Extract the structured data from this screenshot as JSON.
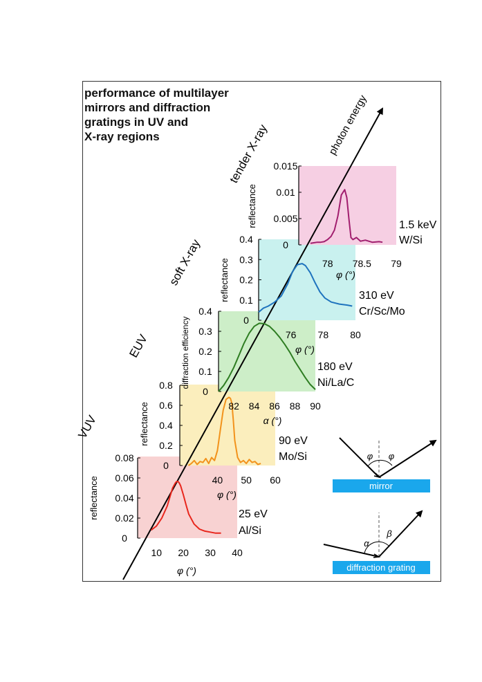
{
  "title_lines": [
    "performance of multilayer",
    "mirrors and diffraction",
    "gratings in UV and",
    "X-ray regions"
  ],
  "axis_label": "photon energy",
  "regions": [
    "VUV",
    "EUV",
    "soft X-ray",
    "tender X-ray"
  ],
  "colors": {
    "vuv_bg": "#f8d2d2",
    "vuv_line": "#e8261c",
    "euv_bg": "#fbeebd",
    "euv_line": "#f2921b",
    "nila_bg": "#cdeec8",
    "nila_line": "#2e7d22",
    "soft_bg": "#c9f1ef",
    "soft_line": "#1e73be",
    "tender_bg": "#f6cfe3",
    "tender_line": "#a11e6e",
    "diagram_bar": "#1aa7ec"
  },
  "chart_data": [
    {
      "type": "line",
      "energy": "25 eV",
      "material": "Al/Si",
      "xlabel": "φ (°)",
      "ylabel": "reflectance",
      "xticks": [
        "10",
        "20",
        "30",
        "40"
      ],
      "yticks": [
        "0",
        "0.02",
        "0.04",
        "0.06",
        "0.08"
      ],
      "xlim": [
        3,
        40
      ],
      "ylim": [
        0,
        0.08
      ],
      "x": [
        8,
        10,
        12,
        14,
        15,
        16,
        17,
        17.5,
        18,
        18.5,
        19,
        20,
        21,
        22,
        24,
        26,
        28,
        30,
        32,
        34
      ],
      "y": [
        0.008,
        0.012,
        0.02,
        0.032,
        0.041,
        0.05,
        0.055,
        0.0565,
        0.0565,
        0.055,
        0.052,
        0.043,
        0.033,
        0.024,
        0.014,
        0.009,
        0.007,
        0.006,
        0.005,
        0.005
      ]
    },
    {
      "type": "line",
      "energy": "90 eV",
      "material": "Mo/Si",
      "xlabel": "φ (°)",
      "ylabel": "reflectance",
      "xticks": [
        "40",
        "50",
        "60"
      ],
      "yticks": [
        "0",
        "0.2",
        "0.4",
        "0.6",
        "0.8"
      ],
      "xlim": [
        27,
        60
      ],
      "ylim": [
        0,
        0.8
      ],
      "x": [
        30,
        31,
        32,
        33,
        34,
        35,
        36,
        37,
        38,
        39,
        40,
        41,
        42,
        43,
        44,
        44.5,
        45,
        45.5,
        46,
        47,
        48,
        49,
        50,
        51,
        52,
        53,
        54,
        55
      ],
      "y": [
        0.0,
        0.02,
        0.05,
        0.01,
        0.04,
        0.03,
        0.07,
        0.02,
        0.08,
        0.05,
        0.15,
        0.35,
        0.55,
        0.66,
        0.68,
        0.67,
        0.62,
        0.45,
        0.25,
        0.08,
        0.03,
        0.05,
        0.02,
        0.06,
        0.03,
        0.04,
        0.01,
        0.02
      ]
    },
    {
      "type": "line",
      "energy": "180 eV",
      "material": "Ni/La/C",
      "xlabel": "α (°)",
      "ylabel": "diffraction efficiency",
      "xticks": [
        "82",
        "84",
        "86",
        "88",
        "90"
      ],
      "yticks": [
        "0",
        "0.1",
        "0.2",
        "0.3",
        "0.4"
      ],
      "xlim": [
        80.5,
        90
      ],
      "ylim": [
        0,
        0.4
      ],
      "x": [
        80.5,
        81,
        81.5,
        82,
        82.5,
        83,
        83.5,
        84,
        84.5,
        85,
        85.5,
        86,
        86.5,
        87,
        87.5,
        88,
        88.5,
        89,
        89.5,
        90
      ],
      "y": [
        0.0,
        0.03,
        0.07,
        0.12,
        0.18,
        0.24,
        0.29,
        0.325,
        0.34,
        0.338,
        0.325,
        0.3,
        0.27,
        0.235,
        0.195,
        0.15,
        0.11,
        0.07,
        0.035,
        0.01
      ]
    },
    {
      "type": "line",
      "energy": "310 eV",
      "material": "Cr/Sc/Mo",
      "xlabel": "φ (°)",
      "ylabel": "reflectance",
      "xticks": [
        "76",
        "78",
        "80"
      ],
      "yticks": [
        "0",
        "0.1",
        "0.2",
        "0.3",
        "0.4"
      ],
      "xlim": [
        74,
        80
      ],
      "ylim": [
        0,
        0.4
      ],
      "x": [
        74,
        74.3,
        74.6,
        75,
        75.4,
        75.8,
        76.1,
        76.4,
        76.7,
        76.9,
        77.2,
        77.5,
        77.8,
        78.1,
        78.5,
        79,
        79.5,
        79.8
      ],
      "y": [
        0.04,
        0.06,
        0.07,
        0.09,
        0.12,
        0.18,
        0.24,
        0.275,
        0.28,
        0.27,
        0.235,
        0.185,
        0.14,
        0.11,
        0.09,
        0.08,
        0.075,
        0.07
      ]
    },
    {
      "type": "line",
      "energy": "1.5 keV",
      "material": "W/Si",
      "xlabel": "φ (°)",
      "ylabel": "reflectance",
      "xticks": [
        "78",
        "78.5",
        "79"
      ],
      "yticks": [
        "0",
        "0.005",
        "0.01",
        "0.015"
      ],
      "xlim": [
        77.58,
        79
      ],
      "ylim": [
        0,
        0.015
      ],
      "x": [
        77.75,
        77.8,
        77.85,
        77.9,
        77.95,
        78.0,
        78.05,
        78.1,
        78.15,
        78.2,
        78.25,
        78.28,
        78.31,
        78.34,
        78.37,
        78.42,
        78.48,
        78.55,
        78.65,
        78.75,
        78.8
      ],
      "y": [
        0.0003,
        0.0004,
        0.0005,
        0.0005,
        0.0006,
        0.001,
        0.0016,
        0.0028,
        0.0055,
        0.0095,
        0.0105,
        0.009,
        0.005,
        0.0014,
        0.001,
        0.0014,
        0.0007,
        0.0009,
        0.0005,
        0.0006,
        0.0005
      ]
    }
  ],
  "diagrams": {
    "mirror_label": "mirror",
    "mirror_angle_left": "φ",
    "mirror_angle_right": "φ",
    "grating_label": "diffraction grating",
    "grating_angle_left": "α",
    "grating_angle_right": "β"
  }
}
